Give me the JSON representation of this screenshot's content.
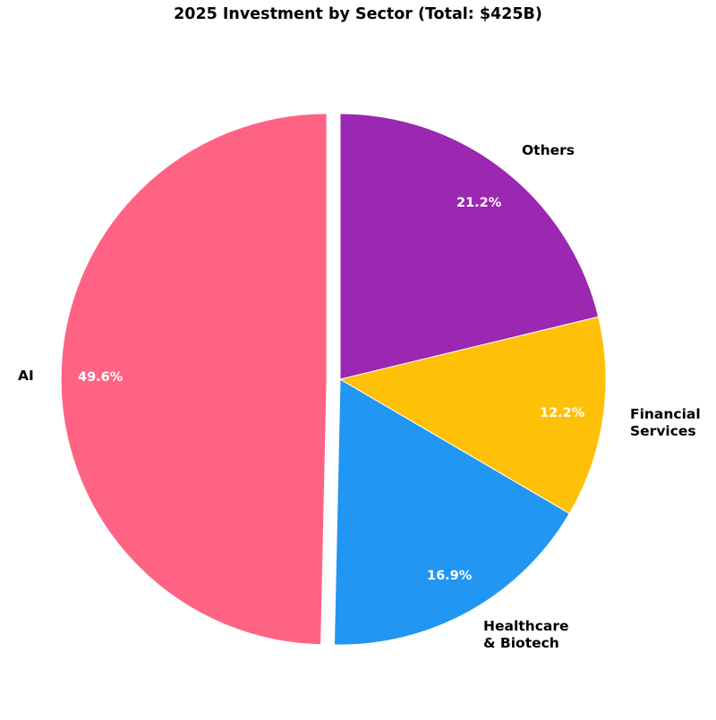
{
  "chart_data": {
    "type": "pie",
    "title": "2025 Investment by Sector (Total: $425B)",
    "categories": [
      "AI",
      "Healthcare & Biotech",
      "Financial Services",
      "Others"
    ],
    "values": [
      49.6,
      16.9,
      12.2,
      21.2
    ],
    "percent_labels": [
      "49.6%",
      "16.9%",
      "12.2%",
      "21.2%"
    ],
    "colors": [
      "#FF6384",
      "#2196F3",
      "#FFC107",
      "#9C27B0"
    ],
    "explode": [
      0.05,
      0,
      0,
      0
    ],
    "start_angle": 90,
    "counterclock": true,
    "total": "$425B",
    "legend": null
  },
  "labels": {
    "title": "2025 Investment by Sector (Total: $425B)",
    "ai": "AI",
    "ai_pct": "49.6%",
    "health_line1": "Healthcare",
    "health_line2": "& Biotech",
    "health_pct": "16.9%",
    "fin_line1": "Financial",
    "fin_line2": "Services",
    "fin_pct": "12.2%",
    "others": "Others",
    "others_pct": "21.2%"
  }
}
